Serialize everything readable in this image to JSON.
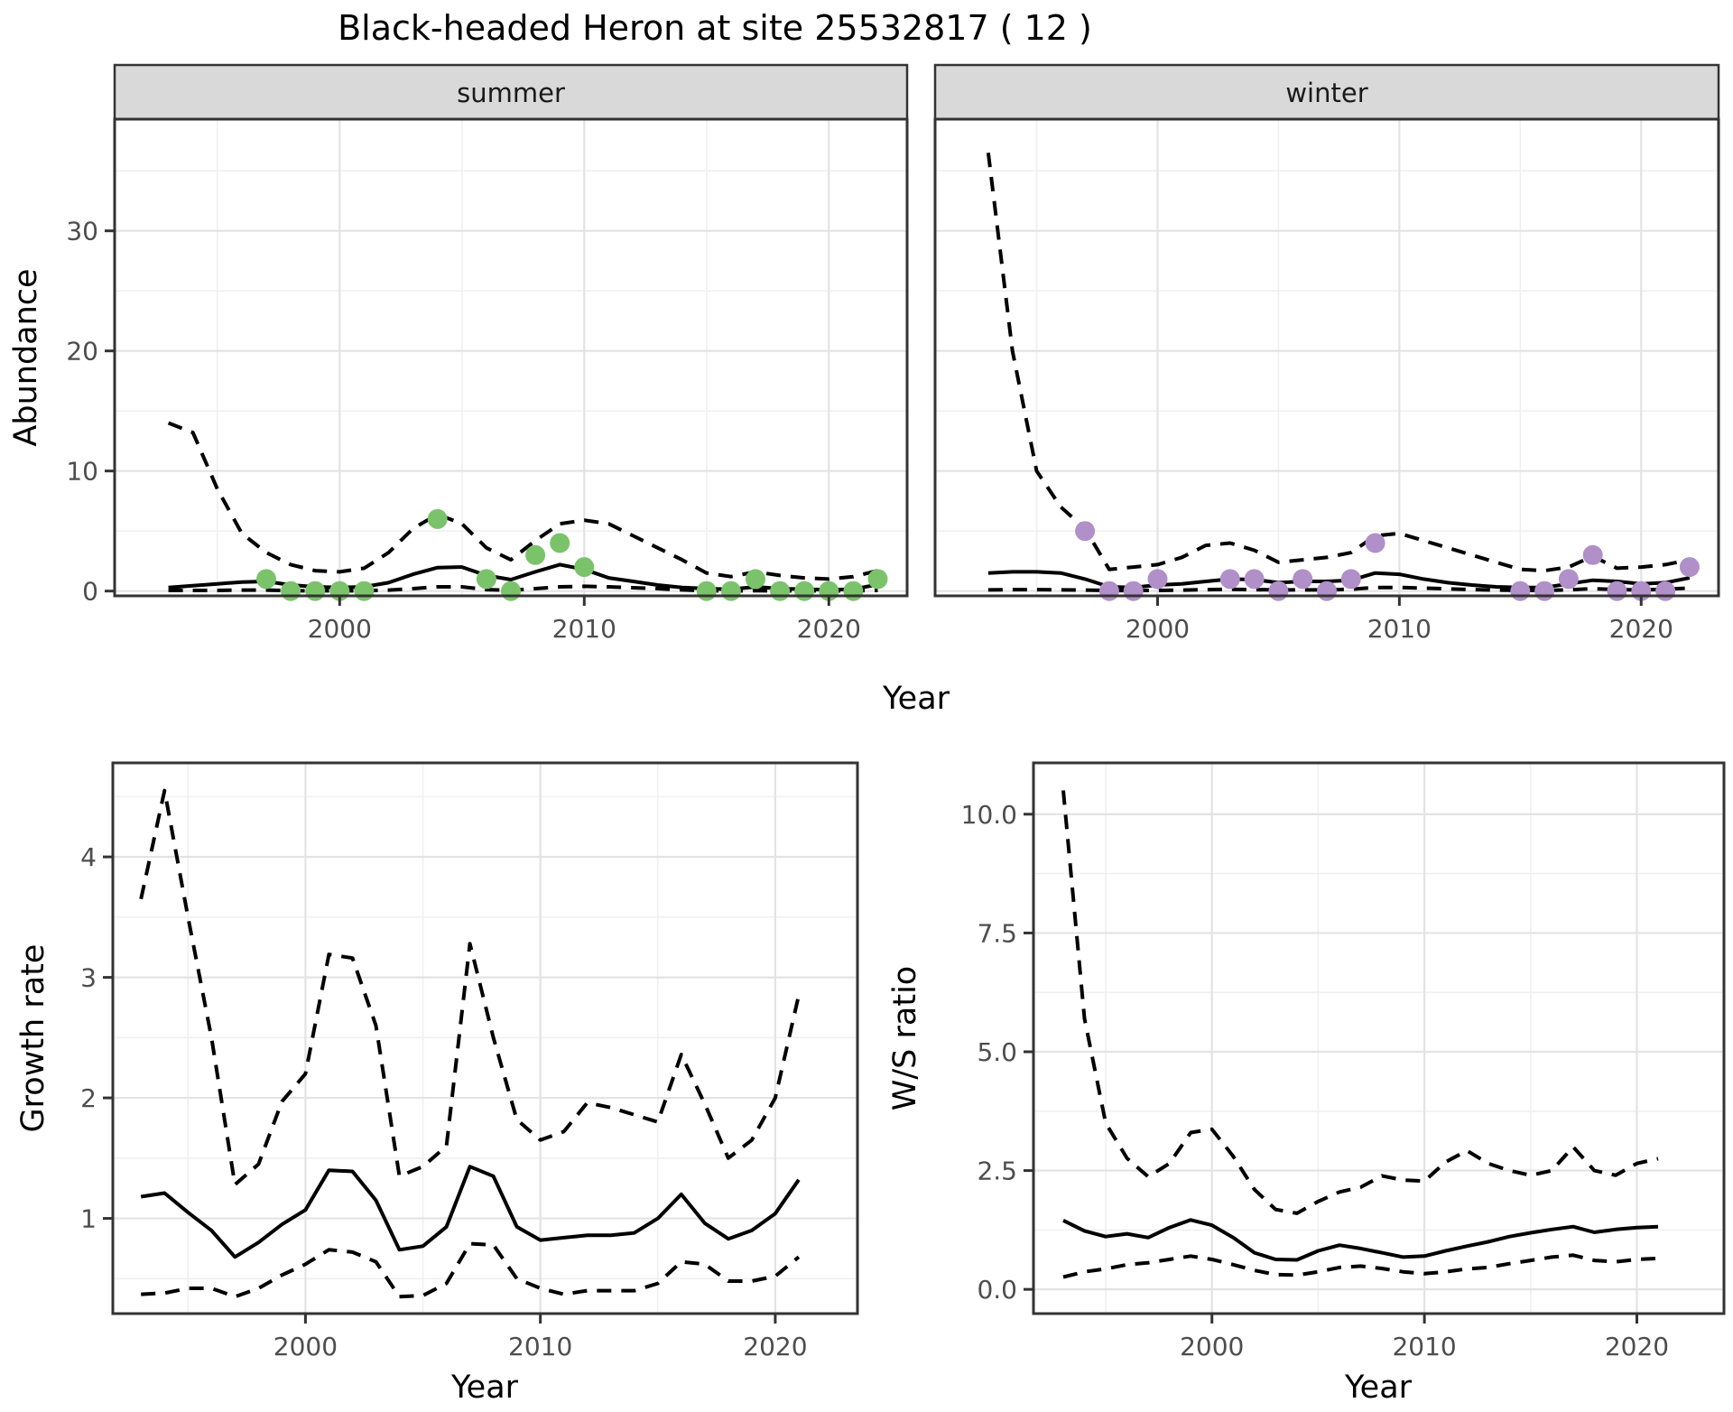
{
  "title": "Black-headed Heron at site 25532817 ( 12 )",
  "top_row": {
    "facets": [
      {
        "label": "summer"
      },
      {
        "label": "winter"
      }
    ],
    "ylabel": "Abundance",
    "xlabel": "Year"
  },
  "bottom_left": {
    "ylabel": "Growth rate",
    "xlabel": "Year"
  },
  "bottom_right": {
    "ylabel": "W/S ratio",
    "xlabel": "Year"
  },
  "colors": {
    "summer_points": "#7bc36a",
    "winter_points": "#b18fc9",
    "line": "#000000",
    "grid_major": "#e3e3e3",
    "grid_minor": "#f0f0f0",
    "strip_bg": "#d9d9d9",
    "panel_border": "#333333",
    "tick_text": "#4d4d4d",
    "tick_mark": "#333333"
  },
  "chart_data": [
    {
      "name": "abundance_summer",
      "type": "line",
      "facet": "summer",
      "xlabel": "Year",
      "ylabel": "Abundance",
      "x_domain": [
        1990.8,
        2023.2
      ],
      "y_domain": [
        -0.4,
        39.3
      ],
      "x_major": [
        2000,
        2010,
        2020
      ],
      "x_major_labels": [
        "2000",
        "2010",
        "2020"
      ],
      "x_minor": [
        1995,
        2005,
        2015
      ],
      "y_major": [
        0,
        10,
        20,
        30
      ],
      "y_major_labels": [
        "0",
        "10",
        "20",
        "30"
      ],
      "y_minor": [
        5,
        15,
        25,
        35
      ],
      "years": [
        1993,
        1994,
        1995,
        1996,
        1997,
        1998,
        1999,
        2000,
        2001,
        2002,
        2003,
        2004,
        2005,
        2006,
        2007,
        2008,
        2009,
        2010,
        2011,
        2012,
        2013,
        2014,
        2015,
        2016,
        2017,
        2018,
        2019,
        2020,
        2021,
        2022
      ],
      "mean": [
        0.3,
        0.45,
        0.6,
        0.75,
        0.8,
        0.5,
        0.35,
        0.3,
        0.35,
        0.7,
        1.4,
        1.95,
        2.0,
        1.3,
        0.95,
        1.6,
        2.2,
        1.8,
        1.1,
        0.8,
        0.5,
        0.3,
        0.2,
        0.15,
        0.35,
        0.2,
        0.15,
        0.12,
        0.15,
        0.55
      ],
      "upper": [
        14,
        13.2,
        8.5,
        4.8,
        3.2,
        2.2,
        1.7,
        1.6,
        1.9,
        3.2,
        5.2,
        6.4,
        5.6,
        3.6,
        2.6,
        4.2,
        5.6,
        5.9,
        5.6,
        4.6,
        3.6,
        2.6,
        1.5,
        1.2,
        1.6,
        1.3,
        1.1,
        1.0,
        1.2,
        1.7
      ],
      "lower": [
        0.05,
        0.05,
        0.05,
        0.08,
        0.08,
        0.03,
        0.02,
        0.02,
        0.03,
        0.08,
        0.2,
        0.35,
        0.35,
        0.12,
        0.06,
        0.2,
        0.35,
        0.4,
        0.35,
        0.28,
        0.2,
        0.1,
        0.03,
        0.02,
        0.03,
        0.02,
        0.02,
        0.02,
        0.02,
        0.06
      ],
      "observed_points": [
        [
          1997,
          1
        ],
        [
          1998,
          0
        ],
        [
          1999,
          0
        ],
        [
          2000,
          0
        ],
        [
          2001,
          0
        ],
        [
          2004,
          6
        ],
        [
          2006,
          1
        ],
        [
          2007,
          0
        ],
        [
          2008,
          3
        ],
        [
          2009,
          4
        ],
        [
          2010,
          2
        ],
        [
          2015,
          0
        ],
        [
          2016,
          0
        ],
        [
          2017,
          1
        ],
        [
          2018,
          0
        ],
        [
          2019,
          0
        ],
        [
          2020,
          0
        ],
        [
          2021,
          0
        ],
        [
          2022,
          1
        ]
      ],
      "point_color_key": "summer_points"
    },
    {
      "name": "abundance_winter",
      "type": "line",
      "facet": "winter",
      "xlabel": "Year",
      "ylabel": "Abundance",
      "x_domain": [
        1990.8,
        2023.2
      ],
      "y_domain": [
        -0.4,
        39.3
      ],
      "x_major": [
        2000,
        2010,
        2020
      ],
      "x_major_labels": [
        "2000",
        "2010",
        "2020"
      ],
      "x_minor": [
        1995,
        2005,
        2015
      ],
      "y_major": [
        0,
        10,
        20,
        30
      ],
      "y_major_labels": [
        "0",
        "10",
        "20",
        "30"
      ],
      "y_minor": [
        5,
        15,
        25,
        35
      ],
      "years": [
        1993,
        1994,
        1995,
        1996,
        1997,
        1998,
        1999,
        2000,
        2001,
        2002,
        2003,
        2004,
        2005,
        2006,
        2007,
        2008,
        2009,
        2010,
        2011,
        2012,
        2013,
        2014,
        2015,
        2016,
        2017,
        2018,
        2019,
        2020,
        2021,
        2022
      ],
      "mean": [
        1.5,
        1.6,
        1.6,
        1.5,
        1.0,
        0.35,
        0.3,
        0.5,
        0.6,
        0.8,
        1.0,
        0.95,
        0.7,
        0.8,
        0.8,
        0.9,
        1.5,
        1.4,
        1.0,
        0.7,
        0.5,
        0.35,
        0.3,
        0.3,
        0.6,
        0.9,
        0.8,
        0.6,
        0.7,
        1.1
      ],
      "upper": [
        36.5,
        20,
        10,
        7,
        5.2,
        1.8,
        2.0,
        2.2,
        2.8,
        3.8,
        4.0,
        3.4,
        2.4,
        2.6,
        2.8,
        3.2,
        4.6,
        4.8,
        4.2,
        3.6,
        3.0,
        2.4,
        1.8,
        1.7,
        2.0,
        2.9,
        1.9,
        2.0,
        2.2,
        2.6
      ],
      "lower": [
        0.1,
        0.12,
        0.12,
        0.1,
        0.08,
        0.04,
        0.04,
        0.05,
        0.08,
        0.12,
        0.15,
        0.12,
        0.1,
        0.1,
        0.1,
        0.15,
        0.3,
        0.3,
        0.25,
        0.18,
        0.12,
        0.08,
        0.05,
        0.05,
        0.1,
        0.2,
        0.12,
        0.1,
        0.15,
        0.25
      ],
      "observed_points": [
        [
          1997,
          5
        ],
        [
          1998,
          0
        ],
        [
          1999,
          0
        ],
        [
          2000,
          1
        ],
        [
          2003,
          1
        ],
        [
          2004,
          1
        ],
        [
          2005,
          0
        ],
        [
          2006,
          1
        ],
        [
          2007,
          0
        ],
        [
          2008,
          1
        ],
        [
          2009,
          4
        ],
        [
          2015,
          0
        ],
        [
          2016,
          0
        ],
        [
          2017,
          1
        ],
        [
          2018,
          3
        ],
        [
          2019,
          0
        ],
        [
          2020,
          0
        ],
        [
          2021,
          0
        ],
        [
          2022,
          2
        ]
      ],
      "point_color_key": "winter_points"
    },
    {
      "name": "growth_rate",
      "type": "line",
      "xlabel": "Year",
      "ylabel": "Growth rate",
      "x_domain": [
        1991.8,
        2023.5
      ],
      "y_domain": [
        0.21,
        4.78
      ],
      "x_major": [
        2000,
        2010,
        2020
      ],
      "x_major_labels": [
        "2000",
        "2010",
        "2020"
      ],
      "x_minor": [
        1995,
        2005,
        2015
      ],
      "y_major": [
        1,
        2,
        3,
        4
      ],
      "y_major_labels": [
        "1",
        "2",
        "3",
        "4"
      ],
      "y_minor": [
        0.5,
        1.5,
        2.5,
        3.5,
        4.5
      ],
      "years": [
        1993,
        1994,
        1995,
        1996,
        1997,
        1998,
        1999,
        2000,
        2001,
        2002,
        2003,
        2004,
        2005,
        2006,
        2007,
        2008,
        2009,
        2010,
        2011,
        2012,
        2013,
        2014,
        2015,
        2016,
        2017,
        2018,
        2019,
        2020,
        2021
      ],
      "mean": [
        1.18,
        1.21,
        1.05,
        0.9,
        0.68,
        0.8,
        0.95,
        1.07,
        1.4,
        1.39,
        1.15,
        0.74,
        0.77,
        0.93,
        1.43,
        1.35,
        0.93,
        0.82,
        0.84,
        0.86,
        0.86,
        0.88,
        1.0,
        1.2,
        0.96,
        0.83,
        0.9,
        1.04,
        1.32
      ],
      "upper": [
        3.65,
        4.55,
        3.5,
        2.5,
        1.28,
        1.45,
        1.97,
        2.2,
        3.19,
        3.16,
        2.6,
        1.35,
        1.43,
        1.6,
        3.28,
        2.5,
        1.82,
        1.65,
        1.72,
        1.96,
        1.92,
        1.86,
        1.8,
        2.36,
        1.95,
        1.5,
        1.65,
        2.0,
        2.85
      ],
      "lower": [
        0.37,
        0.38,
        0.42,
        0.42,
        0.35,
        0.42,
        0.53,
        0.62,
        0.74,
        0.72,
        0.64,
        0.35,
        0.36,
        0.46,
        0.79,
        0.78,
        0.5,
        0.42,
        0.37,
        0.4,
        0.4,
        0.4,
        0.46,
        0.64,
        0.62,
        0.48,
        0.48,
        0.52,
        0.68
      ],
      "observed_points": [],
      "point_color_key": null
    },
    {
      "name": "ws_ratio",
      "type": "line",
      "xlabel": "Year",
      "ylabel": "W/S ratio",
      "x_domain": [
        1991.6,
        2024.1
      ],
      "y_domain": [
        -0.51,
        11.08
      ],
      "x_major": [
        2000,
        2010,
        2020
      ],
      "x_major_labels": [
        "2000",
        "2010",
        "2020"
      ],
      "x_minor": [
        1995,
        2005,
        2015
      ],
      "y_major": [
        0,
        2.5,
        5,
        7.5,
        10
      ],
      "y_major_labels": [
        "0.0",
        "2.5",
        "5.0",
        "7.5",
        "10.0"
      ],
      "y_minor": [
        1.25,
        3.75,
        6.25,
        8.75
      ],
      "years": [
        1993,
        1994,
        1995,
        1996,
        1997,
        1998,
        1999,
        2000,
        2001,
        2002,
        2003,
        2004,
        2005,
        2006,
        2007,
        2008,
        2009,
        2010,
        2011,
        2012,
        2013,
        2014,
        2015,
        2016,
        2017,
        2018,
        2019,
        2020,
        2021
      ],
      "mean": [
        1.45,
        1.23,
        1.11,
        1.17,
        1.09,
        1.3,
        1.46,
        1.35,
        1.09,
        0.77,
        0.63,
        0.62,
        0.81,
        0.93,
        0.86,
        0.77,
        0.68,
        0.7,
        0.81,
        0.91,
        1.0,
        1.11,
        1.19,
        1.26,
        1.32,
        1.2,
        1.26,
        1.3,
        1.32
      ],
      "upper": [
        10.5,
        5.7,
        3.5,
        2.76,
        2.37,
        2.65,
        3.3,
        3.37,
        2.8,
        2.1,
        1.68,
        1.6,
        1.85,
        2.05,
        2.15,
        2.39,
        2.3,
        2.28,
        2.68,
        2.92,
        2.65,
        2.5,
        2.4,
        2.5,
        3.0,
        2.5,
        2.4,
        2.65,
        2.75
      ],
      "lower": [
        0.26,
        0.37,
        0.43,
        0.52,
        0.56,
        0.63,
        0.7,
        0.63,
        0.52,
        0.4,
        0.31,
        0.3,
        0.37,
        0.46,
        0.49,
        0.44,
        0.37,
        0.33,
        0.37,
        0.43,
        0.46,
        0.54,
        0.61,
        0.68,
        0.72,
        0.61,
        0.58,
        0.63,
        0.65
      ],
      "observed_points": [],
      "point_color_key": null
    }
  ]
}
